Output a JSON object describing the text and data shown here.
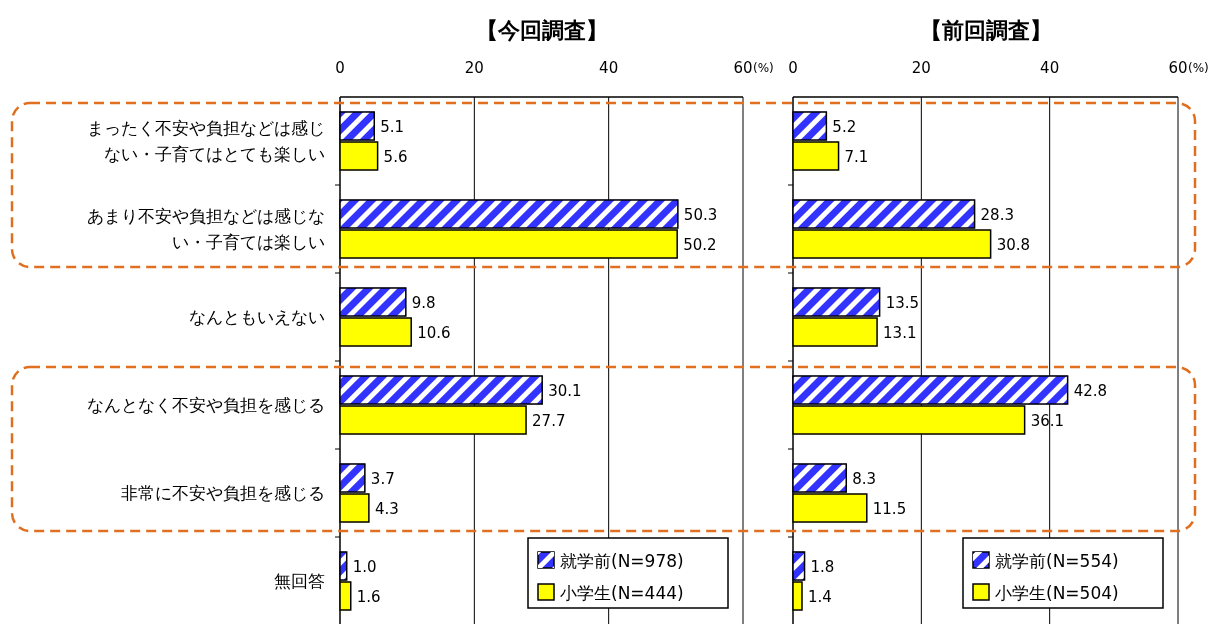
{
  "chart_data": [
    {
      "type": "bar",
      "orientation": "horizontal",
      "title": "【今回調査】",
      "xlabel": "(%)",
      "categories": [
        "まったく不安や負担などは感じない・子育てはとても楽しい",
        "あまり不安や負担などは感じない・子育ては楽しい",
        "なんともいえない",
        "なんとなく不安や負担を感じる",
        "非常に不安や負担を感じる",
        "無回答"
      ],
      "series": [
        {
          "name": "就学前(N=978)",
          "color": "#3333ff",
          "values": [
            5.1,
            50.3,
            9.8,
            30.1,
            3.7,
            1.0
          ],
          "value_labels": [
            "5.1",
            "50.3",
            "9.8",
            "30.1",
            "3.7",
            "1.0"
          ]
        },
        {
          "name": "小学生(N=444)",
          "color": "#ffff00",
          "values": [
            5.6,
            50.2,
            10.6,
            27.7,
            4.3,
            1.6
          ]
        }
      ],
      "xlim": [
        0,
        60
      ],
      "xticks": [
        0,
        20,
        40,
        60
      ],
      "grid": "x",
      "legend": "bottom right",
      "data_labels": true
    },
    {
      "type": "bar",
      "orientation": "horizontal",
      "title": "【前回調査】",
      "xlabel": "(%)",
      "categories": [
        "まったく不安や負担などは感じない・子育てはとても楽しい",
        "あまり不安や負担などは感じない・子育ては楽しい",
        "なんともいえない",
        "なんとなく不安や負担を感じる",
        "非常に不安や負担を感じる",
        "無回答"
      ],
      "series": [
        {
          "name": "就学前(N=554)",
          "color": "#3333ff",
          "values": [
            5.2,
            28.3,
            13.5,
            42.8,
            8.3,
            1.8
          ]
        },
        {
          "name": "小学生(N=504)",
          "color": "#ffff00",
          "values": [
            7.1,
            30.8,
            13.1,
            36.1,
            11.5,
            1.4
          ]
        }
      ],
      "xlim": [
        0,
        60
      ],
      "xticks": [
        0,
        20,
        40,
        60
      ],
      "grid": "x",
      "legend": "bottom right",
      "data_labels": true,
      "tick_labels": "x"
    }
  ]
}
